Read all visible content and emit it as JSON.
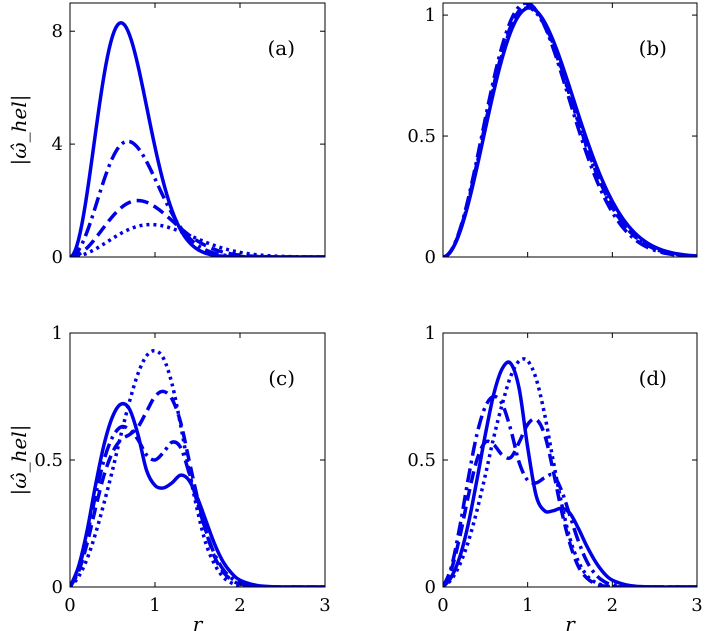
{
  "chart_data": [
    {
      "type": "line",
      "panel": "(a)",
      "ylabel": "|ω̂_hel|",
      "xlabel": "",
      "xlim": [
        0,
        3
      ],
      "ylim": [
        0,
        9
      ],
      "xticks": [],
      "yticks": [
        "0",
        "4",
        "8"
      ],
      "ytick_values": [
        0,
        4,
        8
      ],
      "series": [
        {
          "style": "solid",
          "peak_x": 0.6,
          "peak_y": 8.3,
          "width": 0.42
        },
        {
          "style": "dashdot",
          "peak_x": 0.68,
          "peak_y": 4.1,
          "width": 0.45
        },
        {
          "style": "dashed",
          "peak_x": 0.8,
          "peak_y": 2.0,
          "width": 0.48
        },
        {
          "style": "dotted",
          "peak_x": 0.95,
          "peak_y": 1.15,
          "width": 0.52
        }
      ]
    },
    {
      "type": "line",
      "panel": "(b)",
      "ylabel": "",
      "xlabel": "",
      "xlim": [
        0,
        3
      ],
      "ylim": [
        0,
        1.05
      ],
      "xticks": [],
      "yticks": [
        "0",
        "0.5",
        "1"
      ],
      "ytick_values": [
        0,
        0.5,
        1
      ],
      "series": [
        {
          "style": "solid",
          "peak_x": 1.02,
          "peak_y": 1.03,
          "width": 0.43
        },
        {
          "style": "dashdot",
          "peak_x": 0.98,
          "peak_y": 1.05,
          "width": 0.4
        },
        {
          "style": "dashed",
          "peak_x": 1.0,
          "peak_y": 1.04,
          "width": 0.39
        },
        {
          "style": "dotted",
          "peak_x": 1.0,
          "peak_y": 1.03,
          "width": 0.36
        }
      ]
    },
    {
      "type": "line",
      "panel": "(c)",
      "ylabel": "|ω̂_hel|",
      "xlabel": "r",
      "xlim": [
        0,
        3
      ],
      "ylim": [
        0,
        1
      ],
      "xticks": [
        "0",
        "1",
        "2",
        "3"
      ],
      "xtick_values": [
        0,
        1,
        2,
        3
      ],
      "yticks": [
        "0",
        "0.5",
        "1"
      ],
      "ytick_values": [
        0,
        0.5,
        1
      ],
      "series": [
        {
          "style": "solid",
          "x": [
            0,
            0.1,
            0.2,
            0.3,
            0.4,
            0.5,
            0.6,
            0.7,
            0.8,
            0.9,
            1.0,
            1.1,
            1.2,
            1.3,
            1.4,
            1.5,
            1.6,
            1.7,
            1.8,
            1.9,
            2.0,
            2.2,
            2.4,
            2.6,
            3.0
          ],
          "y": [
            0,
            0.08,
            0.22,
            0.4,
            0.56,
            0.67,
            0.72,
            0.7,
            0.6,
            0.46,
            0.4,
            0.39,
            0.41,
            0.44,
            0.42,
            0.35,
            0.26,
            0.17,
            0.1,
            0.055,
            0.027,
            0.006,
            0.001,
            0,
            0
          ]
        },
        {
          "style": "dashdot",
          "x": [
            0,
            0.1,
            0.2,
            0.3,
            0.4,
            0.5,
            0.6,
            0.7,
            0.8,
            0.9,
            1.0,
            1.1,
            1.2,
            1.3,
            1.4,
            1.5,
            1.6,
            1.7,
            1.8,
            1.9,
            2.0,
            2.2,
            2.4,
            2.6,
            3.0
          ],
          "y": [
            0,
            0.07,
            0.2,
            0.36,
            0.5,
            0.59,
            0.63,
            0.62,
            0.58,
            0.52,
            0.5,
            0.53,
            0.57,
            0.55,
            0.45,
            0.33,
            0.22,
            0.13,
            0.07,
            0.035,
            0.016,
            0.003,
            0,
            0,
            0
          ]
        },
        {
          "style": "dashed",
          "x": [
            0,
            0.1,
            0.2,
            0.3,
            0.4,
            0.5,
            0.6,
            0.7,
            0.8,
            0.9,
            1.0,
            1.1,
            1.2,
            1.3,
            1.4,
            1.5,
            1.6,
            1.7,
            1.8,
            1.9,
            2.0,
            2.2,
            2.4,
            2.6,
            3.0
          ],
          "y": [
            0,
            0.06,
            0.17,
            0.31,
            0.44,
            0.53,
            0.58,
            0.6,
            0.63,
            0.69,
            0.75,
            0.77,
            0.74,
            0.65,
            0.5,
            0.35,
            0.22,
            0.12,
            0.06,
            0.028,
            0.012,
            0.002,
            0,
            0,
            0
          ]
        },
        {
          "style": "dotted",
          "x": [
            0,
            0.1,
            0.2,
            0.3,
            0.4,
            0.5,
            0.6,
            0.7,
            0.8,
            0.9,
            1.0,
            1.1,
            1.2,
            1.3,
            1.4,
            1.5,
            1.6,
            1.7,
            1.8,
            1.9,
            2.0,
            2.2,
            2.4,
            2.6,
            3.0
          ],
          "y": [
            0,
            0.04,
            0.11,
            0.21,
            0.33,
            0.46,
            0.6,
            0.73,
            0.84,
            0.91,
            0.93,
            0.9,
            0.8,
            0.64,
            0.46,
            0.3,
            0.17,
            0.09,
            0.04,
            0.016,
            0.006,
            0.001,
            0,
            0,
            0
          ]
        }
      ]
    },
    {
      "type": "line",
      "panel": "(d)",
      "ylabel": "",
      "xlabel": "r",
      "xlim": [
        0,
        3
      ],
      "ylim": [
        0,
        1
      ],
      "xticks": [
        "0",
        "1",
        "2",
        "3"
      ],
      "xtick_values": [
        0,
        1,
        2,
        3
      ],
      "yticks": [
        "0",
        "0.5",
        "1"
      ],
      "ytick_values": [
        0,
        0.5,
        1
      ],
      "series": [
        {
          "style": "solid",
          "x": [
            0,
            0.1,
            0.2,
            0.3,
            0.4,
            0.5,
            0.6,
            0.7,
            0.8,
            0.9,
            1.0,
            1.1,
            1.2,
            1.3,
            1.4,
            1.5,
            1.6,
            1.7,
            1.8,
            1.9,
            2.0,
            2.2,
            2.4,
            2.6,
            3.0
          ],
          "y": [
            0,
            0.04,
            0.12,
            0.25,
            0.42,
            0.6,
            0.76,
            0.86,
            0.88,
            0.78,
            0.55,
            0.36,
            0.3,
            0.3,
            0.31,
            0.29,
            0.23,
            0.16,
            0.1,
            0.055,
            0.027,
            0.006,
            0.001,
            0,
            0
          ]
        },
        {
          "style": "dashdot",
          "x": [
            0,
            0.1,
            0.2,
            0.3,
            0.4,
            0.5,
            0.6,
            0.7,
            0.8,
            0.9,
            1.0,
            1.1,
            1.2,
            1.3,
            1.4,
            1.5,
            1.6,
            1.7,
            1.8,
            1.9,
            2.0,
            2.2,
            2.4,
            2.6,
            3.0
          ],
          "y": [
            0,
            0.08,
            0.24,
            0.43,
            0.6,
            0.71,
            0.75,
            0.72,
            0.62,
            0.49,
            0.42,
            0.41,
            0.43,
            0.44,
            0.38,
            0.28,
            0.18,
            0.1,
            0.05,
            0.022,
            0.009,
            0.001,
            0,
            0,
            0
          ]
        },
        {
          "style": "dashed",
          "x": [
            0,
            0.1,
            0.2,
            0.3,
            0.4,
            0.5,
            0.6,
            0.7,
            0.8,
            0.9,
            1.0,
            1.1,
            1.2,
            1.3,
            1.4,
            1.5,
            1.6,
            1.7,
            1.8,
            1.9,
            2.0,
            2.2,
            2.4,
            2.6,
            3.0
          ],
          "y": [
            0,
            0.07,
            0.2,
            0.36,
            0.5,
            0.57,
            0.56,
            0.52,
            0.51,
            0.57,
            0.64,
            0.66,
            0.6,
            0.46,
            0.3,
            0.17,
            0.08,
            0.035,
            0.013,
            0.004,
            0.001,
            0,
            0,
            0,
            0
          ]
        },
        {
          "style": "dotted",
          "x": [
            0,
            0.1,
            0.2,
            0.3,
            0.4,
            0.5,
            0.6,
            0.7,
            0.8,
            0.9,
            1.0,
            1.1,
            1.2,
            1.3,
            1.4,
            1.5,
            1.6,
            1.7,
            1.8,
            1.9,
            2.0,
            2.2,
            2.4,
            2.6,
            3.0
          ],
          "y": [
            0,
            0.03,
            0.09,
            0.18,
            0.3,
            0.44,
            0.59,
            0.72,
            0.83,
            0.89,
            0.89,
            0.82,
            0.68,
            0.5,
            0.33,
            0.19,
            0.1,
            0.045,
            0.018,
            0.006,
            0.002,
            0,
            0,
            0,
            0
          ]
        }
      ]
    }
  ]
}
